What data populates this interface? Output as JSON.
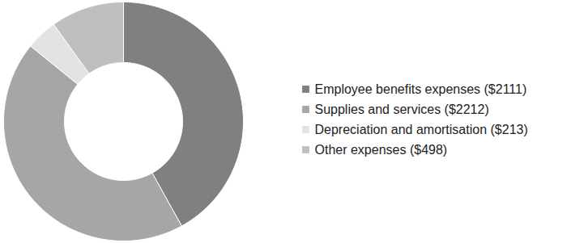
{
  "chart_data": {
    "type": "donut",
    "categories": [
      "Employee benefits expenses ($2111)",
      "Supplies and services ($2212)",
      "Depreciation and amortisation ($213)",
      "Other expenses ($498)"
    ],
    "values": [
      2111,
      2212,
      213,
      498
    ],
    "colors": [
      "#808080",
      "#a6a6a6",
      "#e3e3e3",
      "#bfbfbf"
    ],
    "legend": "right",
    "tick_labels": false
  }
}
